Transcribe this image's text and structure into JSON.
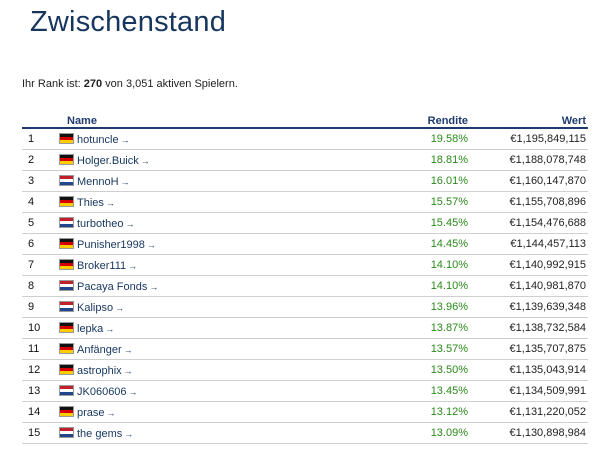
{
  "page": {
    "title": "Zwischenstand",
    "rank_prefix": "Ihr Rank ist:",
    "rank_value": "270",
    "rank_suffix": "von 3,051 aktiven Spielern."
  },
  "table": {
    "headers": {
      "rank": "",
      "name": "Name",
      "return": "Rendite",
      "value": "Wert"
    },
    "arrow_glyph": "→",
    "rows": [
      {
        "rank": "1",
        "flag": "de",
        "name": "hotuncle",
        "return": "19.58%",
        "value": "€1,195,849,115"
      },
      {
        "rank": "2",
        "flag": "de",
        "name": "Holger.Buick",
        "return": "18.81%",
        "value": "€1,188,078,748"
      },
      {
        "rank": "3",
        "flag": "nl",
        "name": "MennoH",
        "return": "16.01%",
        "value": "€1,160,147,870"
      },
      {
        "rank": "4",
        "flag": "de",
        "name": "Thies",
        "return": "15.57%",
        "value": "€1,155,708,896"
      },
      {
        "rank": "5",
        "flag": "nl",
        "name": "turbotheo",
        "return": "15.45%",
        "value": "€1,154,476,688"
      },
      {
        "rank": "6",
        "flag": "de",
        "name": "Punisher1998",
        "return": "14.45%",
        "value": "€1,144,457,113"
      },
      {
        "rank": "7",
        "flag": "de",
        "name": "Broker111",
        "return": "14.10%",
        "value": "€1,140,992,915"
      },
      {
        "rank": "8",
        "flag": "nl",
        "name": "Pacaya Fonds",
        "return": "14.10%",
        "value": "€1,140,981,870"
      },
      {
        "rank": "9",
        "flag": "nl",
        "name": "Kalipso",
        "return": "13.96%",
        "value": "€1,139,639,348"
      },
      {
        "rank": "10",
        "flag": "de",
        "name": "lepka",
        "return": "13.87%",
        "value": "€1,138,732,584"
      },
      {
        "rank": "11",
        "flag": "de",
        "name": "Anfänger",
        "return": "13.57%",
        "value": "€1,135,707,875"
      },
      {
        "rank": "12",
        "flag": "de",
        "name": "astrophix",
        "return": "13.50%",
        "value": "€1,135,043,914"
      },
      {
        "rank": "13",
        "flag": "nl",
        "name": "JK060606",
        "return": "13.45%",
        "value": "€1,134,509,991"
      },
      {
        "rank": "14",
        "flag": "de",
        "name": "prase",
        "return": "13.12%",
        "value": "€1,131,220,052"
      },
      {
        "rank": "15",
        "flag": "nl",
        "name": "the gems",
        "return": "13.09%",
        "value": "€1,130,898,984"
      }
    ]
  },
  "colors": {
    "title": "#16365e",
    "header": "#1e3a6e",
    "return_positive": "#2a8a1a"
  }
}
